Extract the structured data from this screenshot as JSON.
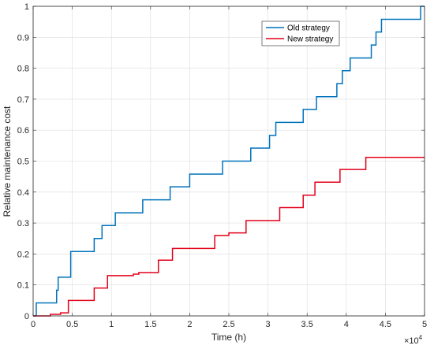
{
  "chart_data": {
    "type": "line",
    "step": true,
    "xlabel": "Time (h)",
    "ylabel": "Relative maintenance cost",
    "x_multiplier": "×10",
    "x_multiplier_exponent": "4",
    "xlim": [
      0,
      5
    ],
    "ylim": [
      0,
      1
    ],
    "xticks": [
      "0",
      "0.5",
      "1",
      "1.5",
      "2",
      "2.5",
      "3",
      "3.5",
      "4",
      "4.5",
      "5"
    ],
    "yticks": [
      "0",
      "0.1",
      "0.2",
      "0.3",
      "0.4",
      "0.5",
      "0.6",
      "0.7",
      "0.8",
      "0.9",
      "1"
    ],
    "grid": true,
    "legend_position": "top-right",
    "series": [
      {
        "name": "Old strategy",
        "color": "#0072bd",
        "x": [
          0,
          0.04,
          0.3,
          0.32,
          0.48,
          0.78,
          0.88,
          1.05,
          1.4,
          1.75,
          2.0,
          2.42,
          2.78,
          3.02,
          3.1,
          3.45,
          3.62,
          3.88,
          3.95,
          4.05,
          4.32,
          4.38,
          4.45,
          4.95,
          5.0
        ],
        "values": [
          0,
          0.042,
          0.083,
          0.125,
          0.208,
          0.25,
          0.292,
          0.333,
          0.375,
          0.417,
          0.458,
          0.5,
          0.542,
          0.583,
          0.625,
          0.667,
          0.708,
          0.75,
          0.792,
          0.833,
          0.875,
          0.917,
          0.958,
          1.0,
          1.0
        ]
      },
      {
        "name": "New strategy",
        "color": "#e2001a",
        "x": [
          0,
          0.22,
          0.35,
          0.45,
          0.78,
          0.95,
          1.28,
          1.35,
          1.6,
          1.78,
          2.32,
          2.5,
          2.72,
          3.15,
          3.45,
          3.6,
          3.92,
          4.25,
          5.0
        ],
        "values": [
          0,
          0.005,
          0.01,
          0.05,
          0.09,
          0.13,
          0.135,
          0.14,
          0.18,
          0.218,
          0.26,
          0.268,
          0.308,
          0.35,
          0.39,
          0.432,
          0.473,
          0.512,
          0.512
        ]
      }
    ]
  }
}
